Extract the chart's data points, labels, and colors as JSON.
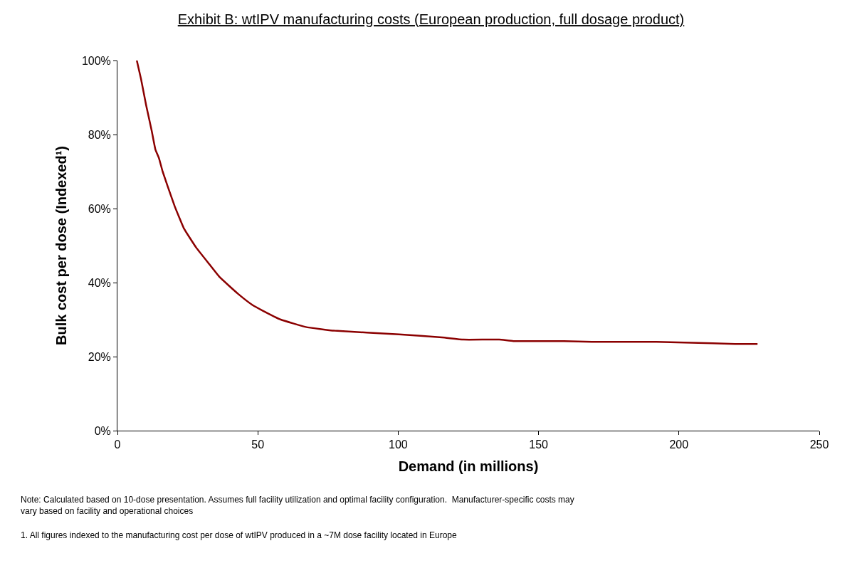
{
  "chart_data": {
    "type": "line",
    "title": "Exhibit B: wtIPV manufacturing costs (European production, full dosage product)",
    "xlabel": "Demand (in millions)",
    "ylabel": "Bulk cost per dose (Indexed¹)",
    "x": [
      6.9,
      8.4,
      10.2,
      12.2,
      13.5,
      14.8,
      16.1,
      17.9,
      20.4,
      23.7,
      28.1,
      32.7,
      36.5,
      42.9,
      48,
      51.8,
      58.2,
      67.1,
      77.3,
      100.3,
      115.6,
      123.2,
      136,
      141,
      159,
      169,
      192,
      212,
      220,
      228
    ],
    "series": [
      {
        "color": "#8b0000",
        "values": [
          100,
          95,
          88,
          81,
          76,
          73.6,
          70,
          66,
          60.6,
          54.6,
          49.4,
          45,
          41.4,
          37,
          34,
          32.4,
          30,
          28,
          27,
          26,
          25.2,
          24.6,
          24.6,
          24.2,
          24.2,
          24,
          24,
          23.6,
          23.4,
          23.4
        ]
      }
    ],
    "xlim": [
      0,
      250
    ],
    "xticks": [
      0,
      50,
      100,
      150,
      200,
      250
    ],
    "ylim": [
      0,
      100
    ],
    "yticks": [
      {
        "value": 0,
        "label": "0%"
      },
      {
        "value": 20,
        "label": "20%"
      },
      {
        "value": 40,
        "label": "40%"
      },
      {
        "value": 60,
        "label": "60%"
      },
      {
        "value": 80,
        "label": "80%"
      },
      {
        "value": 100,
        "label": "100%"
      }
    ],
    "marker": "none",
    "line_style": "solid",
    "annotations": [
      "Note: Calculated based on 10-dose presentation. Assumes full facility utilization and optimal facility configuration.  Manufacturer-specific costs may vary based on facility and operational choices",
      "1. All figures indexed to the manufacturing cost per dose of wtIPV produced in a ~7M dose facility located in Europe"
    ]
  }
}
